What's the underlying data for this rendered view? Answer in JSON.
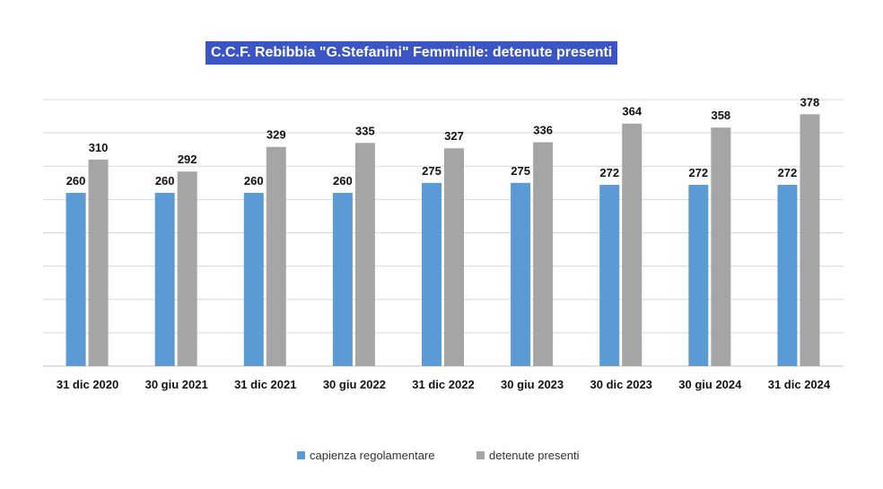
{
  "chart_data": {
    "type": "bar",
    "title": "C.C.F. Rebibbia \"G.Stefanini\" Femminile: detenute presenti",
    "categories": [
      "31 dic 2020",
      "30 giu 2021",
      "31 dic 2021",
      "30 giu 2022",
      "31 dic 2022",
      "30 giu 2023",
      "30 dic 2023",
      "30 giu 2024",
      "31 dic 2024"
    ],
    "series": [
      {
        "name": "capienza regolamentare",
        "color": "#5b9bd5",
        "values": [
          260,
          260,
          260,
          260,
          275,
          275,
          272,
          272,
          272
        ]
      },
      {
        "name": "detenute presenti",
        "color": "#a5a5a5",
        "values": [
          310,
          292,
          329,
          335,
          327,
          336,
          364,
          358,
          378
        ]
      }
    ],
    "ylim": [
      0,
      400
    ],
    "y_gridlines": [
      0,
      50,
      100,
      150,
      200,
      250,
      300,
      350,
      400
    ],
    "grid": true,
    "legend": "bottom-center",
    "xlabel": "",
    "ylabel": ""
  }
}
